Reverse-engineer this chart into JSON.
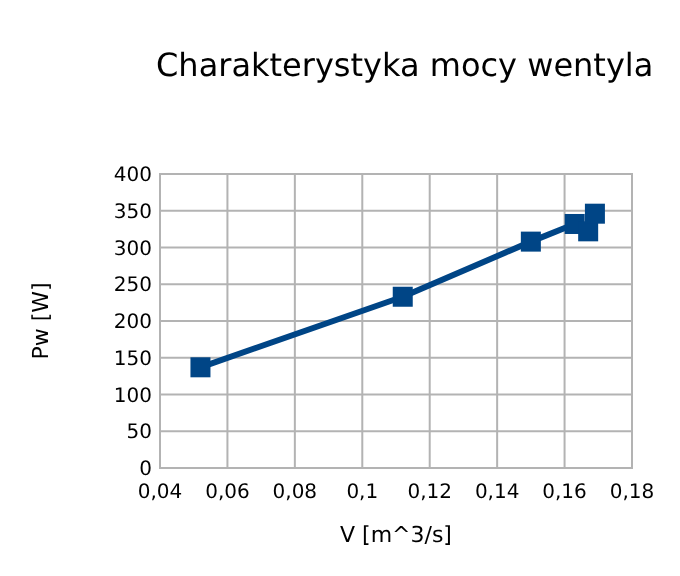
{
  "chart_data": {
    "type": "line",
    "title": "Charakterystyka mocy wentyla",
    "xlabel": "V [m^3/s]",
    "ylabel": "Pw [W]",
    "x": [
      0.052,
      0.112,
      0.15,
      0.163,
      0.167,
      0.169
    ],
    "series": [
      {
        "color": "#004586",
        "values": [
          137,
          233,
          308,
          332,
          322,
          346
        ]
      }
    ],
    "xlim": [
      0.04,
      0.18
    ],
    "xticks": [
      {
        "value": 0.04,
        "label": "0,04"
      },
      {
        "value": 0.06,
        "label": "0,06"
      },
      {
        "value": 0.08,
        "label": "0,08"
      },
      {
        "value": 0.1,
        "label": "0,1"
      },
      {
        "value": 0.12,
        "label": "0,12"
      },
      {
        "value": 0.14,
        "label": "0,14"
      },
      {
        "value": 0.16,
        "label": "0,16"
      },
      {
        "value": 0.18,
        "label": "0,18"
      }
    ],
    "ylim": [
      0,
      400
    ],
    "yticks": [
      0,
      50,
      100,
      150,
      200,
      250,
      300,
      350,
      400
    ],
    "grid": true,
    "marker": "square",
    "line_style": "solid"
  }
}
